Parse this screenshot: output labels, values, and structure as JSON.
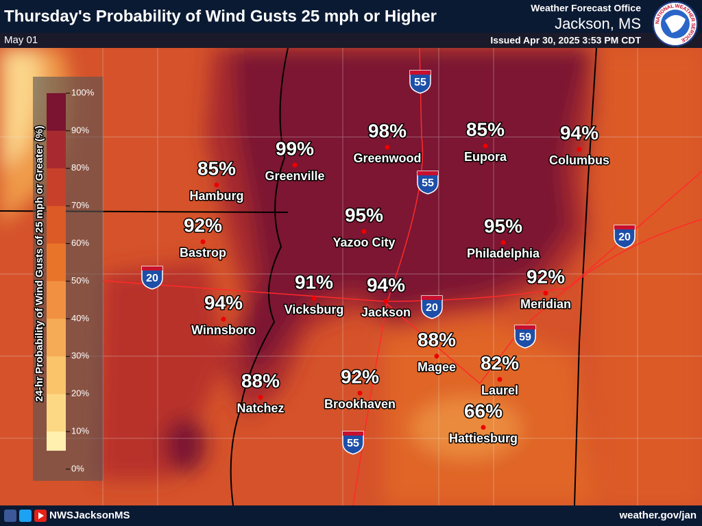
{
  "header": {
    "title": "Thursday's Probability of Wind Gusts 25 mph or Higher",
    "date": "May 01",
    "office": "Weather Forecast Office",
    "location": "Jackson, MS",
    "issued": "Issued Apr 30, 2025 3:53 PM CDT"
  },
  "logo": {
    "text": "NATIONAL WEATHER SERVICE"
  },
  "legend": {
    "title": "24-hr Probability of Wind Gusts of 25 mph or Greater (%)",
    "labels": [
      "100%",
      "90%",
      "80%",
      "70%",
      "60%",
      "50%",
      "40%",
      "30%",
      "20%",
      "10%",
      "0%"
    ]
  },
  "cities": [
    {
      "name": "Hamburg",
      "probability": "85%"
    },
    {
      "name": "Greenville",
      "probability": "99%"
    },
    {
      "name": "Greenwood",
      "probability": "98%"
    },
    {
      "name": "Eupora",
      "probability": "85%"
    },
    {
      "name": "Columbus",
      "probability": "94%"
    },
    {
      "name": "Bastrop",
      "probability": "92%"
    },
    {
      "name": "Yazoo City",
      "probability": "95%"
    },
    {
      "name": "Philadelphia",
      "probability": "95%"
    },
    {
      "name": "Meridian",
      "probability": "92%"
    },
    {
      "name": "Vicksburg",
      "probability": "91%"
    },
    {
      "name": "Jackson",
      "probability": "94%"
    },
    {
      "name": "Winnsboro",
      "probability": "94%"
    },
    {
      "name": "Magee",
      "probability": "88%"
    },
    {
      "name": "Laurel",
      "probability": "82%"
    },
    {
      "name": "Natchez",
      "probability": "88%"
    },
    {
      "name": "Brookhaven",
      "probability": "92%"
    },
    {
      "name": "Hattiesburg",
      "probability": "66%"
    }
  ],
  "interstates": [
    "55",
    "55",
    "20",
    "20",
    "20",
    "59",
    "55"
  ],
  "footer": {
    "handle": "NWSJacksonMS",
    "website": "weather.gov/jan"
  }
}
